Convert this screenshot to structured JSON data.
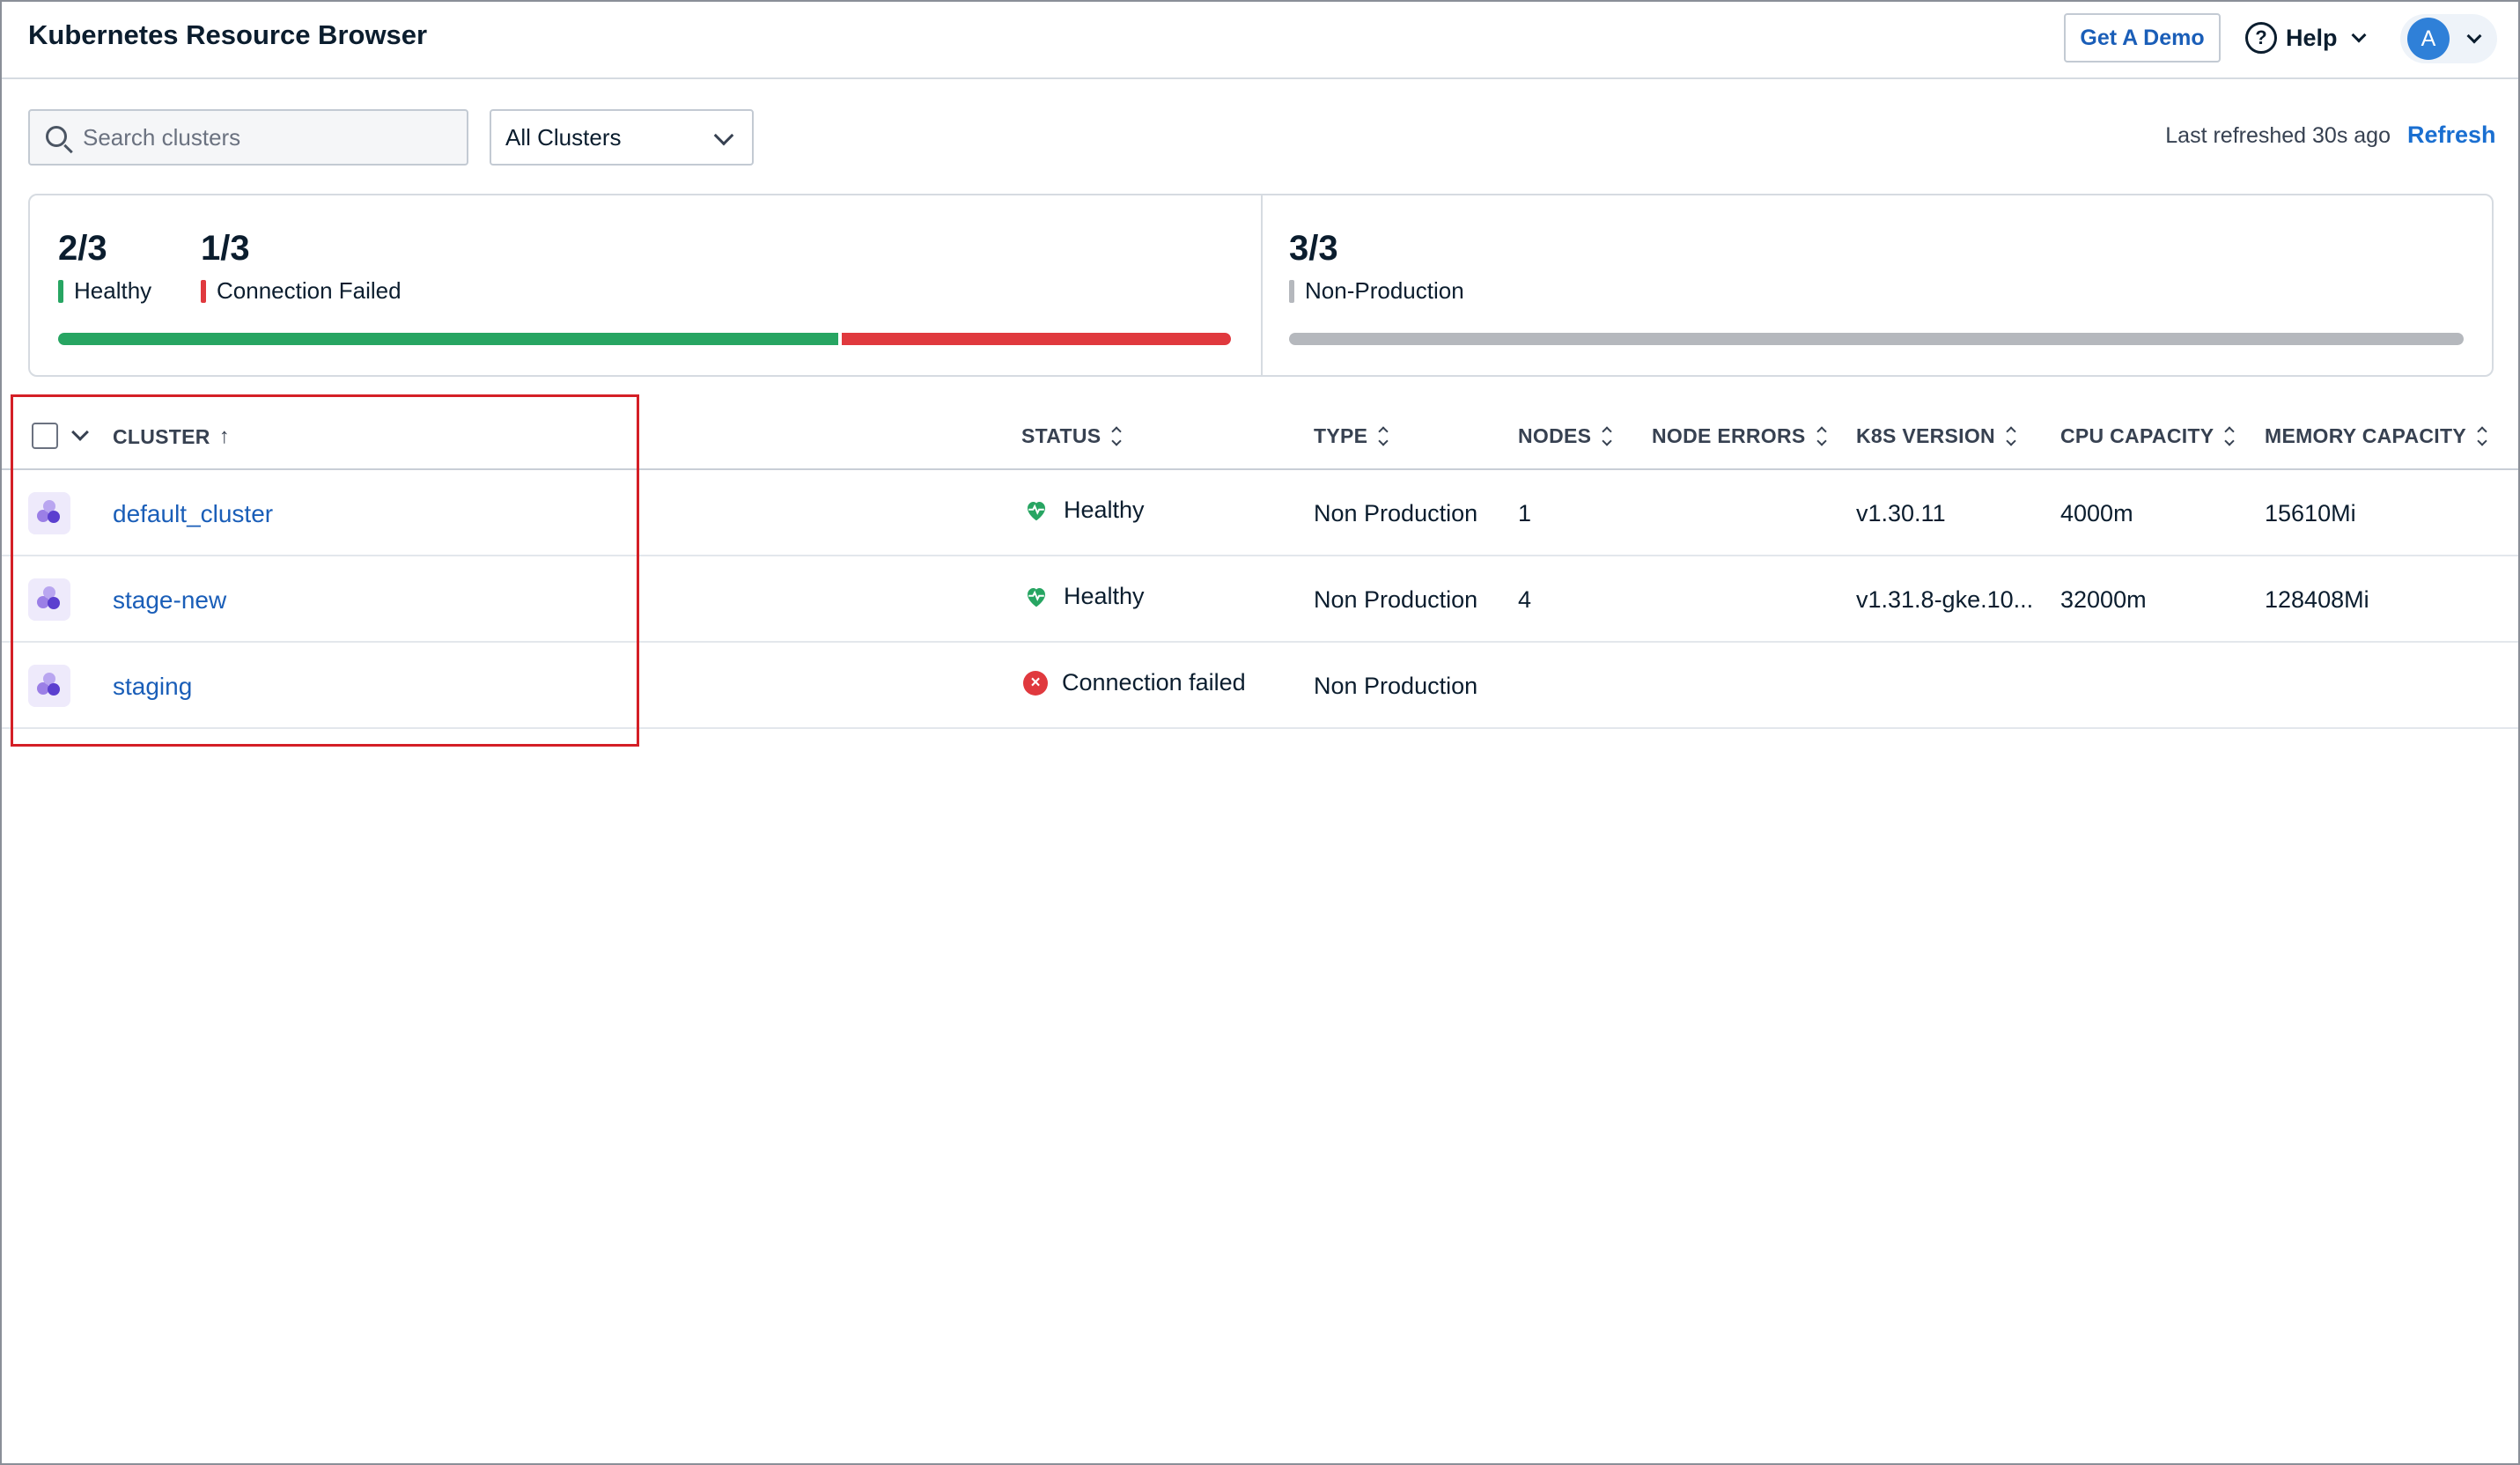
{
  "header": {
    "title": "Kubernetes Resource Browser",
    "demo_label": "Get A Demo",
    "help_label": "Help",
    "user_initial": "A"
  },
  "toolbar": {
    "search_placeholder": "Search clusters",
    "filter_value": "All Clusters",
    "last_refreshed": "Last refreshed 30s ago",
    "refresh_label": "Refresh"
  },
  "summary": {
    "health": [
      {
        "value": "2/3",
        "label": "Healthy",
        "color": "#27a562",
        "fraction": 0.667
      },
      {
        "value": "1/3",
        "label": "Connection Failed",
        "color": "#e0393e",
        "fraction": 0.333
      }
    ],
    "type": [
      {
        "value": "3/3",
        "label": "Non-Production",
        "color": "#b5b8bd",
        "fraction": 1.0
      }
    ]
  },
  "table": {
    "columns": {
      "cluster": "CLUSTER",
      "status": "STATUS",
      "type": "TYPE",
      "nodes": "NODES",
      "node_errors": "NODE ERRORS",
      "k8s_version": "K8S VERSION",
      "cpu": "CPU CAPACITY",
      "memory": "MEMORY CAPACITY"
    },
    "rows": [
      {
        "name": "default_cluster",
        "status": "Healthy",
        "status_kind": "healthy",
        "type": "Non Production",
        "nodes": "1",
        "node_errors": "",
        "k8s_version": "v1.30.11",
        "cpu": "4000m",
        "memory": "15610Mi"
      },
      {
        "name": "stage-new",
        "status": "Healthy",
        "status_kind": "healthy",
        "type": "Non Production",
        "nodes": "4",
        "node_errors": "",
        "k8s_version": "v1.31.8-gke.10...",
        "cpu": "32000m",
        "memory": "128408Mi"
      },
      {
        "name": "staging",
        "status": "Connection failed",
        "status_kind": "failed",
        "type": "Non Production",
        "nodes": "",
        "node_errors": "",
        "k8s_version": "",
        "cpu": "",
        "memory": ""
      }
    ]
  },
  "colors": {
    "accent": "#1a5eb8",
    "healthy": "#27a562",
    "failed": "#e0393e",
    "highlight": "#d41f26"
  }
}
